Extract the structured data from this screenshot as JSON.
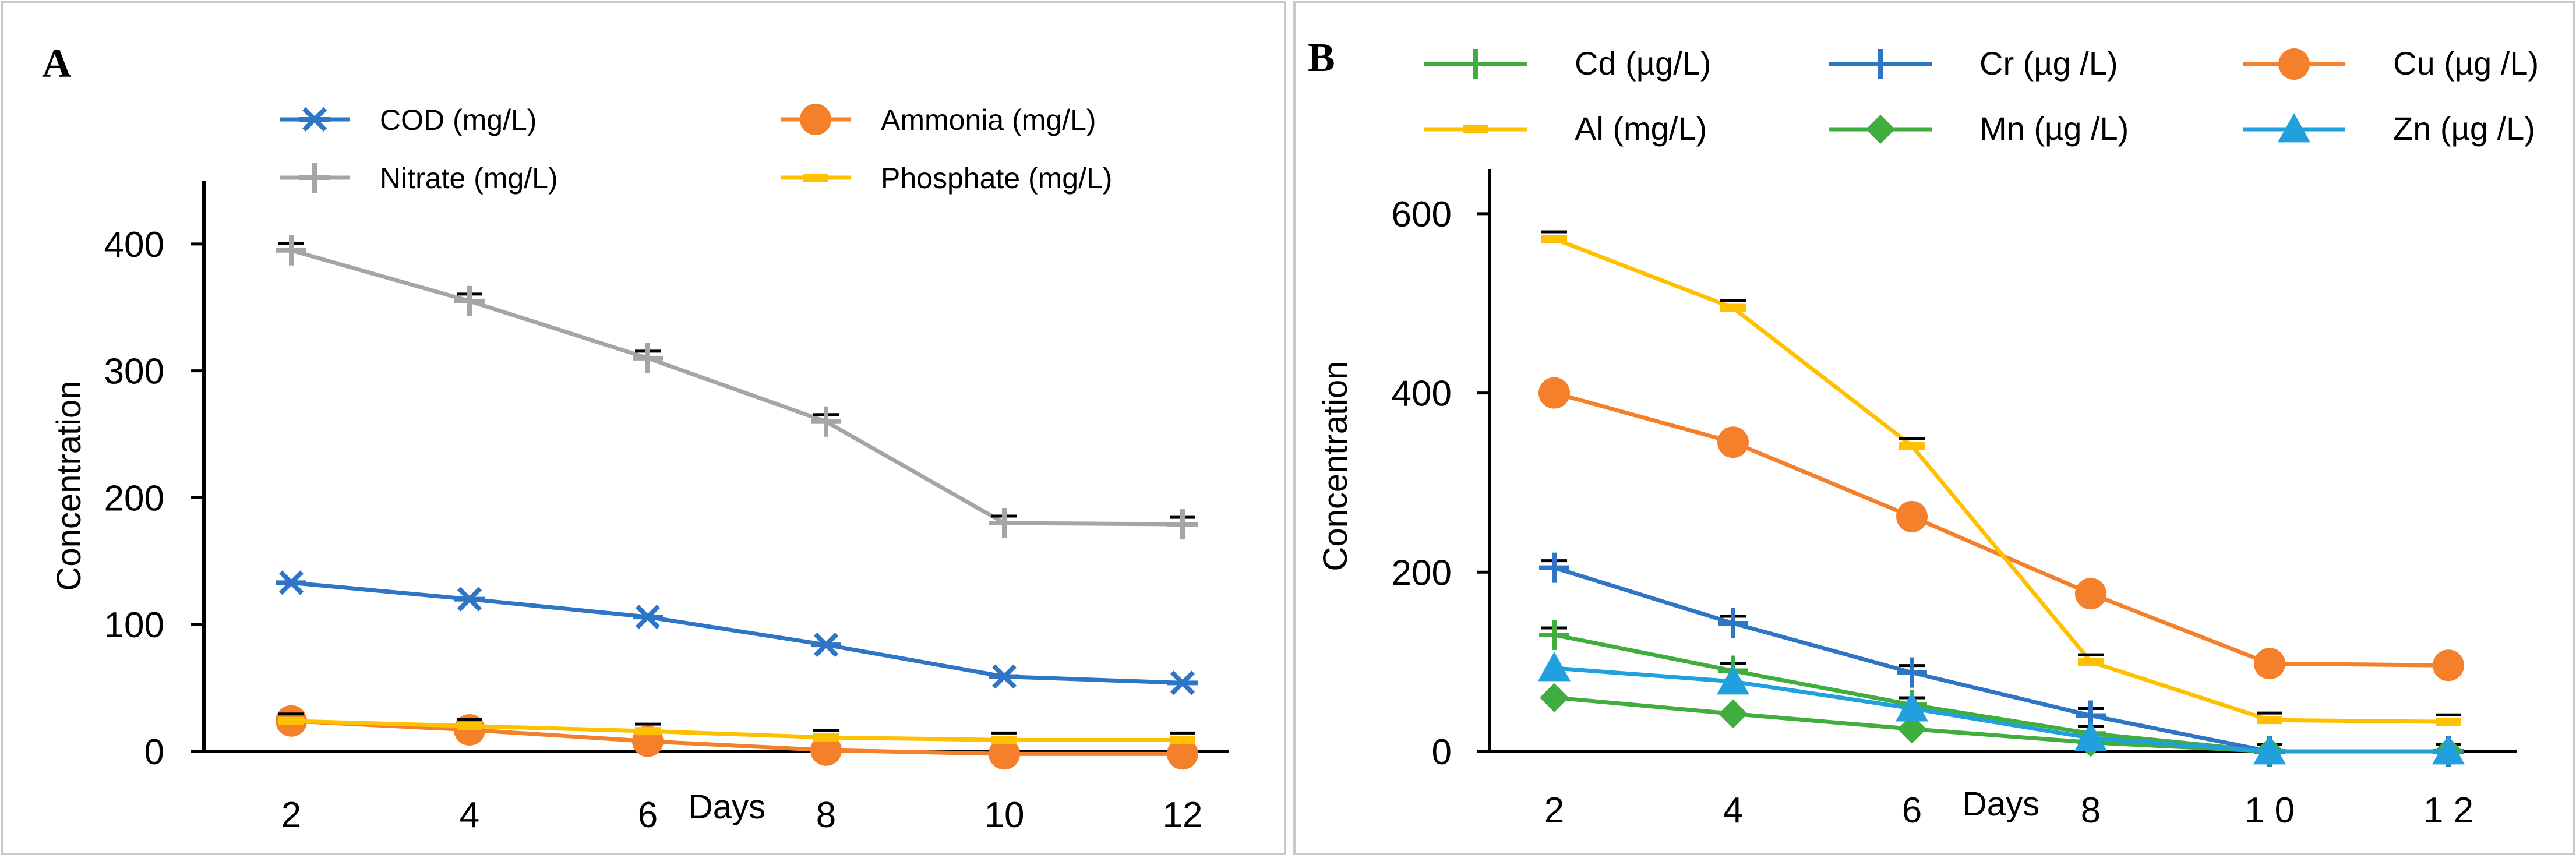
{
  "chart_data": [
    {
      "panel": "A",
      "type": "line",
      "xlabel": "Days",
      "ylabel": "Concentration",
      "ylim": [
        0,
        450
      ],
      "yticks": [
        0,
        100,
        200,
        300,
        400
      ],
      "x": [
        2,
        4,
        6,
        8,
        10,
        12
      ],
      "xtick_labels": [
        "2",
        "4",
        "6",
        "8",
        "10",
        "12"
      ],
      "legend_position": "top",
      "series": [
        {
          "name": "COD (mg/L)",
          "color": "#2E75C6",
          "marker": "asterisk",
          "values": [
            133,
            120,
            106,
            84,
            59,
            54
          ]
        },
        {
          "name": "Ammonia (mg/L)",
          "color": "#F4802C",
          "marker": "circle",
          "values": [
            24,
            17,
            8,
            1,
            -2,
            -2
          ]
        },
        {
          "name": "Nitrate (mg/L)",
          "color": "#A5A5A5",
          "marker": "plus",
          "values": [
            395,
            355,
            310,
            260,
            180,
            179
          ]
        },
        {
          "name": "Phosphate  (mg/L)",
          "color": "#FFC000",
          "marker": "dash",
          "values": [
            24,
            20,
            16,
            11,
            9,
            9
          ]
        }
      ]
    },
    {
      "panel": "B",
      "type": "line",
      "xlabel": "Days",
      "ylabel": "Concentration",
      "ylim": [
        0,
        650
      ],
      "yticks": [
        0,
        200,
        400,
        600
      ],
      "x": [
        2,
        4,
        6,
        8,
        10,
        12
      ],
      "xtick_labels": [
        "2",
        "4",
        "6",
        "8",
        "1 0",
        "1 2"
      ],
      "legend_position": "top",
      "series": [
        {
          "name": "Cd (µg/L)",
          "color": "#3FAE3F",
          "marker": "plus",
          "values": [
            130,
            90,
            52,
            20,
            0,
            0
          ]
        },
        {
          "name": "Cr (µg /L)",
          "color": "#2E75C6",
          "marker": "plus",
          "values": [
            205,
            143,
            88,
            40,
            0,
            0
          ]
        },
        {
          "name": "Cu (µg /L)",
          "color": "#F4802C",
          "marker": "circle",
          "values": [
            400,
            345,
            262,
            176,
            98,
            96
          ]
        },
        {
          "name": "Al (mg/L)",
          "color": "#FFC000",
          "marker": "dash",
          "values": [
            572,
            495,
            341,
            100,
            35,
            33
          ]
        },
        {
          "name": "Mn (µg /L)",
          "color": "#3FAE3F",
          "marker": "diamond",
          "values": [
            60,
            42,
            25,
            10,
            0,
            0
          ]
        },
        {
          "name": "Zn (µg /L)",
          "color": "#20A0DC",
          "marker": "triangle",
          "values": [
            93,
            78,
            48,
            15,
            0,
            0
          ]
        }
      ]
    }
  ]
}
